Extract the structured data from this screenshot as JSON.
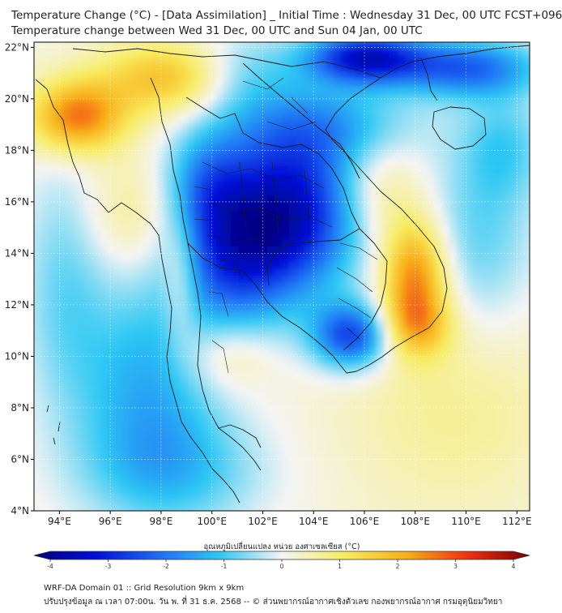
{
  "title_line1": "Temperature Change (°C) - [Data Assimilation] _ Initial Time : Wednesday 31 Dec, 00 UTC FCST+096",
  "title_line2": "Temperature change between Wed 31 Dec, 00 UTC and Sun 04 Jan, 00 UTC",
  "map": {
    "lon_range": [
      93,
      112.5
    ],
    "lat_range": [
      4,
      22.2
    ],
    "lon_ticks": [
      94,
      96,
      98,
      100,
      102,
      104,
      106,
      108,
      110,
      112
    ],
    "lat_ticks": [
      4,
      6,
      8,
      10,
      12,
      14,
      16,
      18,
      20,
      22
    ],
    "lon_labels": [
      "94°E",
      "96°E",
      "98°E",
      "100°E",
      "102°E",
      "104°E",
      "106°E",
      "108°E",
      "110°E",
      "112°E"
    ],
    "lat_labels": [
      "4°N",
      "6°N",
      "8°N",
      "10°N",
      "12°N",
      "14°N",
      "16°N",
      "18°N",
      "20°N",
      "22°N"
    ],
    "grid": true
  },
  "colorbar": {
    "label": "อุณหภูมิเปลี่ยนแปลง หน่วย องศาเซลเซียส (°C)",
    "min": -4,
    "max": 4,
    "ticks": [
      -4,
      -3,
      -2,
      -1,
      0,
      1,
      2,
      3,
      4
    ],
    "tick_labels": [
      "-4",
      "-3",
      "-2",
      "-1",
      "0",
      "1",
      "2",
      "3",
      "4"
    ],
    "colors": [
      "#00007a",
      "#0010d8",
      "#1e6cf4",
      "#2ec8f4",
      "#f4f4f4",
      "#f8ec60",
      "#f8b018",
      "#f03010",
      "#7a0000"
    ]
  },
  "footer_line1": "WRF-DA Domain 01 :: Grid Resolution 9km x 9km",
  "footer_line2": "ปรับปรุงข้อมูล ณ เวลา 07:00น. วัน พ. ที่ 31 ธ.ค. 2568 -- © ส่วนพยากรณ์อากาศเชิงตัวเลข กองพยากรณ์อากาศ กรมอุตุนิยมวิทยา",
  "field": {
    "background_value": 0.15,
    "anomalies": [
      {
        "lon": 103.0,
        "lat": 15.6,
        "value": -3.4,
        "sx": 2.0,
        "sy": 2.2
      },
      {
        "lon": 100.8,
        "lat": 13.5,
        "value": -1.8,
        "sx": 1.6,
        "sy": 1.8
      },
      {
        "lon": 99.8,
        "lat": 16.5,
        "value": -1.6,
        "sx": 1.2,
        "sy": 1.6
      },
      {
        "lon": 105.5,
        "lat": 10.8,
        "value": -2.6,
        "sx": 1.1,
        "sy": 0.9
      },
      {
        "lon": 97.5,
        "lat": 9.0,
        "value": -1.4,
        "sx": 2.0,
        "sy": 2.8
      },
      {
        "lon": 98.5,
        "lat": 5.5,
        "value": -1.0,
        "sx": 2.5,
        "sy": 1.6
      },
      {
        "lon": 104.5,
        "lat": 19.0,
        "value": -1.3,
        "sx": 2.5,
        "sy": 1.2
      },
      {
        "lon": 106.0,
        "lat": 21.6,
        "value": -3.2,
        "sx": 1.6,
        "sy": 0.7
      },
      {
        "lon": 110.0,
        "lat": 21.2,
        "value": -2.2,
        "sx": 2.0,
        "sy": 0.8
      },
      {
        "lon": 111.5,
        "lat": 18.2,
        "value": -0.9,
        "sx": 1.2,
        "sy": 1.5
      },
      {
        "lon": 110.5,
        "lat": 14.5,
        "value": -0.9,
        "sx": 1.6,
        "sy": 2.5
      },
      {
        "lon": 94.2,
        "lat": 13.0,
        "value": -0.8,
        "sx": 1.2,
        "sy": 3.5
      },
      {
        "lon": 101.2,
        "lat": 21.0,
        "value": -0.8,
        "sx": 1.5,
        "sy": 1.2
      },
      {
        "lon": 94.7,
        "lat": 19.3,
        "value": 2.4,
        "sx": 1.3,
        "sy": 1.0
      },
      {
        "lon": 98.2,
        "lat": 20.8,
        "value": 1.6,
        "sx": 1.8,
        "sy": 1.0
      },
      {
        "lon": 108.0,
        "lat": 13.2,
        "value": 2.2,
        "sx": 0.9,
        "sy": 1.5
      },
      {
        "lon": 108.0,
        "lat": 11.2,
        "value": 1.4,
        "sx": 1.0,
        "sy": 0.9
      },
      {
        "lon": 106.5,
        "lat": 16.5,
        "value": 0.8,
        "sx": 1.2,
        "sy": 1.5
      },
      {
        "lon": 98.8,
        "lat": 13.0,
        "value": 0.8,
        "sx": 0.5,
        "sy": 1.8
      },
      {
        "lon": 100.5,
        "lat": 10.0,
        "value": 0.7,
        "sx": 1.2,
        "sy": 1.0
      },
      {
        "lon": 97.0,
        "lat": 15.5,
        "value": 0.6,
        "sx": 1.5,
        "sy": 1.5
      },
      {
        "lon": 109.5,
        "lat": 8.0,
        "value": 0.5,
        "sx": 3.0,
        "sy": 3.0
      }
    ]
  }
}
